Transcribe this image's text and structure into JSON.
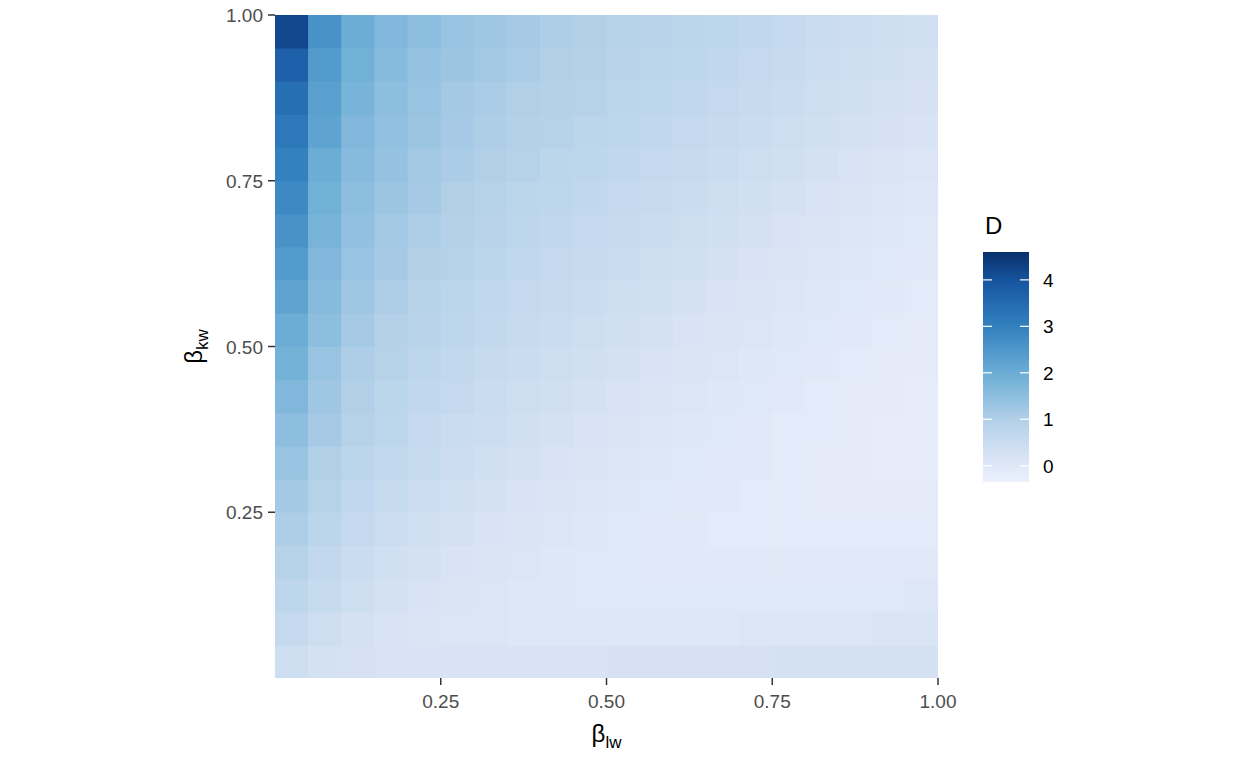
{
  "chart_data": {
    "type": "heatmap",
    "x_label": "βlw",
    "y_label": "βkw",
    "xlim": [
      0,
      1
    ],
    "ylim": [
      0,
      1
    ],
    "xticks": [
      0.25,
      {
        "value": 0.5,
        "label": "0.50"
      },
      0.75,
      {
        "value": 1,
        "label": "1.00"
      }
    ],
    "yticks": [
      0.25,
      {
        "value": 0.5,
        "label": "0.50"
      },
      0.75,
      {
        "value": 1,
        "label": "1.00"
      }
    ],
    "x": [
      0.025,
      0.075,
      0.125,
      0.175,
      0.225,
      0.275,
      0.325,
      0.375,
      0.425,
      0.475,
      0.525,
      0.575,
      0.625,
      0.675,
      0.725,
      0.775,
      0.825,
      0.875,
      0.925,
      0.975
    ],
    "y": [
      0.025,
      0.075,
      0.125,
      0.175,
      0.225,
      0.275,
      0.325,
      0.375,
      0.425,
      0.475,
      0.525,
      0.575,
      0.625,
      0.675,
      0.725,
      0.775,
      0.825,
      0.875,
      0.925,
      0.975
    ],
    "cells": [
      [
        0.4,
        0.3,
        0.25,
        0.2,
        0.2,
        0.2,
        0.2,
        0.2,
        0.2,
        0.2,
        0.25,
        0.25,
        0.25,
        0.25,
        0.25,
        0.3,
        0.3,
        0.3,
        0.3,
        0.3
      ],
      [
        0.6,
        0.4,
        0.3,
        0.2,
        0.15,
        0.1,
        0.1,
        0.05,
        0.05,
        0.05,
        0.05,
        0.05,
        0.05,
        0.05,
        0.1,
        0.1,
        0.1,
        0.1,
        0.15,
        0.15
      ],
      [
        0.75,
        0.55,
        0.4,
        0.3,
        0.2,
        0.15,
        0.1,
        0.05,
        0.05,
        0,
        0,
        0,
        0,
        0,
        0,
        0,
        0,
        0,
        0,
        0.05
      ],
      [
        0.9,
        0.65,
        0.5,
        0.35,
        0.3,
        0.2,
        0.15,
        0.1,
        0.05,
        0,
        0,
        -0.05,
        -0.05,
        -0.05,
        -0.05,
        -0.05,
        -0.05,
        -0.05,
        -0.05,
        -0.05
      ],
      [
        1.05,
        0.8,
        0.6,
        0.45,
        0.35,
        0.3,
        0.2,
        0.15,
        0.1,
        0.05,
        0,
        -0.05,
        -0.05,
        -0.1,
        -0.1,
        -0.1,
        -0.1,
        -0.1,
        -0.1,
        -0.1
      ],
      [
        1.2,
        0.9,
        0.7,
        0.55,
        0.45,
        0.35,
        0.3,
        0.2,
        0.15,
        0.1,
        0.05,
        0,
        -0.05,
        -0.05,
        -0.1,
        -0.1,
        -0.15,
        -0.15,
        -0.15,
        -0.15
      ],
      [
        1.35,
        1.0,
        0.8,
        0.65,
        0.55,
        0.45,
        0.35,
        0.3,
        0.2,
        0.15,
        0.1,
        0.05,
        0,
        -0.05,
        -0.05,
        -0.1,
        -0.15,
        -0.15,
        -0.2,
        -0.2
      ],
      [
        1.5,
        1.15,
        0.9,
        0.75,
        0.6,
        0.5,
        0.45,
        0.35,
        0.3,
        0.2,
        0.15,
        0.1,
        0.05,
        0,
        -0.05,
        -0.1,
        -0.1,
        -0.15,
        -0.2,
        -0.2
      ],
      [
        1.7,
        1.25,
        1.0,
        0.8,
        0.7,
        0.6,
        0.5,
        0.4,
        0.35,
        0.3,
        0.2,
        0.15,
        0.1,
        0.05,
        0,
        -0.05,
        -0.1,
        -0.15,
        -0.15,
        -0.2
      ],
      [
        1.85,
        1.35,
        1.05,
        0.9,
        0.75,
        0.65,
        0.55,
        0.5,
        0.4,
        0.35,
        0.3,
        0.2,
        0.15,
        0.1,
        0.05,
        0,
        -0.05,
        -0.1,
        -0.15,
        -0.15
      ],
      [
        2.0,
        1.5,
        1.15,
        0.95,
        0.85,
        0.75,
        0.65,
        0.55,
        0.5,
        0.4,
        0.35,
        0.3,
        0.2,
        0.15,
        0.1,
        0.05,
        0,
        -0.05,
        -0.1,
        -0.15
      ],
      [
        2.2,
        1.6,
        1.25,
        1.05,
        0.9,
        0.8,
        0.7,
        0.6,
        0.55,
        0.5,
        0.4,
        0.35,
        0.3,
        0.2,
        0.15,
        0.1,
        0.05,
        0,
        -0.05,
        -0.1
      ],
      [
        2.4,
        1.7,
        1.35,
        1.15,
        1.0,
        0.9,
        0.8,
        0.7,
        0.6,
        0.55,
        0.5,
        0.4,
        0.35,
        0.3,
        0.2,
        0.15,
        0.1,
        0.05,
        0,
        -0.05
      ],
      [
        2.6,
        1.8,
        1.45,
        1.2,
        1.05,
        0.95,
        0.85,
        0.75,
        0.7,
        0.6,
        0.55,
        0.5,
        0.4,
        0.35,
        0.3,
        0.2,
        0.15,
        0.1,
        0.05,
        0
      ],
      [
        2.8,
        1.9,
        1.5,
        1.3,
        1.15,
        1.0,
        0.9,
        0.8,
        0.75,
        0.7,
        0.6,
        0.55,
        0.5,
        0.4,
        0.35,
        0.3,
        0.2,
        0.15,
        0.1,
        0.05
      ],
      [
        3.0,
        2.0,
        1.6,
        1.4,
        1.2,
        1.1,
        1.0,
        0.9,
        0.8,
        0.75,
        0.7,
        0.6,
        0.55,
        0.5,
        0.4,
        0.35,
        0.3,
        0.2,
        0.15,
        0.1
      ],
      [
        3.2,
        2.2,
        1.7,
        1.45,
        1.3,
        1.15,
        1.05,
        0.95,
        0.9,
        0.8,
        0.75,
        0.7,
        0.6,
        0.55,
        0.5,
        0.4,
        0.35,
        0.3,
        0.25,
        0.2
      ],
      [
        3.4,
        2.3,
        1.8,
        1.5,
        1.35,
        1.2,
        1.1,
        1.0,
        0.95,
        0.9,
        0.8,
        0.75,
        0.7,
        0.6,
        0.55,
        0.5,
        0.4,
        0.35,
        0.3,
        0.25
      ],
      [
        3.7,
        2.4,
        1.9,
        1.6,
        1.4,
        1.3,
        1.2,
        1.1,
        1.0,
        0.95,
        0.85,
        0.8,
        0.75,
        0.7,
        0.6,
        0.55,
        0.45,
        0.4,
        0.35,
        0.3
      ],
      [
        4.2,
        2.6,
        2.0,
        1.7,
        1.5,
        1.35,
        1.25,
        1.15,
        1.05,
        1.0,
        0.9,
        0.85,
        0.8,
        0.75,
        0.7,
        0.6,
        0.5,
        0.45,
        0.4,
        0.35
      ]
    ],
    "color_label": "D",
    "color_range": [
      -0.35,
      4.6
    ],
    "color_ticks": [
      0,
      1,
      2,
      3,
      4
    ]
  }
}
